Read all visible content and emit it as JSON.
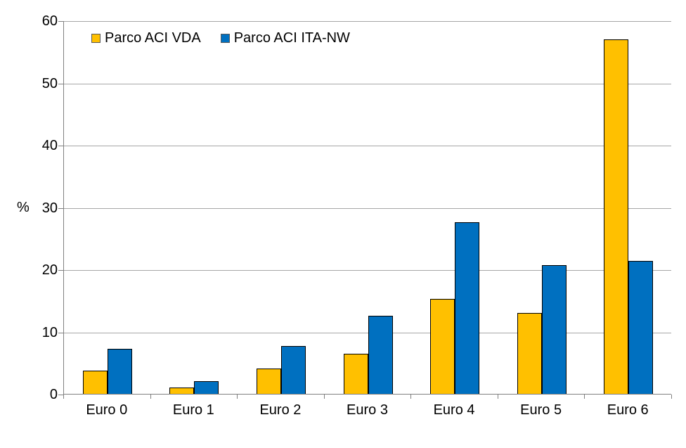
{
  "chart_data": {
    "type": "bar",
    "title": "",
    "xlabel": "",
    "ylabel": "%",
    "ylim": [
      0,
      60
    ],
    "yticks": [
      0,
      10,
      20,
      30,
      40,
      50,
      60
    ],
    "grid": true,
    "legend_position": "top-left-inside",
    "categories": [
      "Euro 0",
      "Euro 1",
      "Euro 2",
      "Euro 3",
      "Euro 4",
      "Euro 5",
      "Euro 6"
    ],
    "series": [
      {
        "name": "Parco ACI VDA",
        "color": "#FFC000",
        "values": [
          3.7,
          1.0,
          4.1,
          6.4,
          15.3,
          13.0,
          57.0
        ]
      },
      {
        "name": "Parco ACI ITA-NW",
        "color": "#0070C0",
        "values": [
          7.2,
          2.0,
          7.7,
          12.6,
          27.6,
          20.7,
          21.4
        ]
      }
    ]
  }
}
